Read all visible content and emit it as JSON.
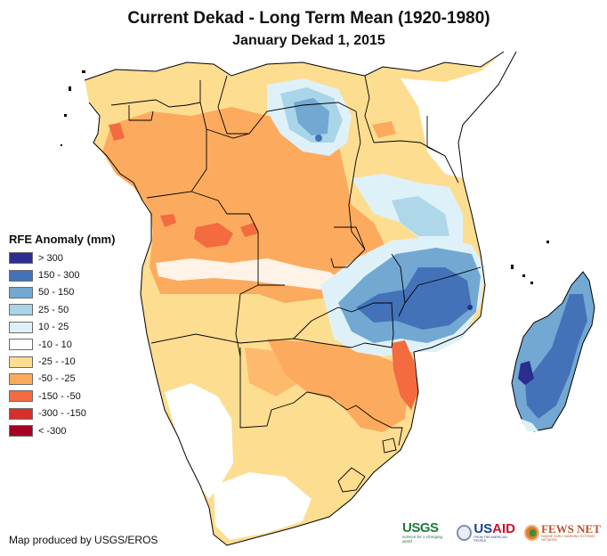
{
  "header": {
    "title": "Current Dekad - Long Term Mean (1920-1980)",
    "subtitle": "January Dekad 1, 2015"
  },
  "legend": {
    "title": "RFE Anomaly (mm)",
    "items": [
      {
        "label": "> 300",
        "color": "#2b2d8f"
      },
      {
        "label": "150 - 300",
        "color": "#4472b8"
      },
      {
        "label": "50 - 150",
        "color": "#72a8d2"
      },
      {
        "label": "25 - 50",
        "color": "#a8d5e8"
      },
      {
        "label": "10 - 25",
        "color": "#dff1f8"
      },
      {
        "label": "-10 - 10",
        "color": "#ffffff"
      },
      {
        "label": "-25 - -10",
        "color": "#fddd90"
      },
      {
        "label": "-50 - -25",
        "color": "#fcab5e"
      },
      {
        "label": "-150 - -50",
        "color": "#f36b3f"
      },
      {
        "label": "-300 - -150",
        "color": "#d7302a"
      },
      {
        "label": "< -300",
        "color": "#a50026"
      }
    ]
  },
  "footer": {
    "credit": "Map produced by USGS/EROS",
    "logos": {
      "usgs": "USGS",
      "usgs_tagline": "science for a changing world",
      "usaid_us": "US",
      "usaid_aid": "AID",
      "usaid_tagline": "FROM THE AMERICAN PEOPLE",
      "fews": "FEWS NET",
      "fews_tagline": "FAMINE EARLY WARNING SYSTEMS NETWORK"
    }
  }
}
